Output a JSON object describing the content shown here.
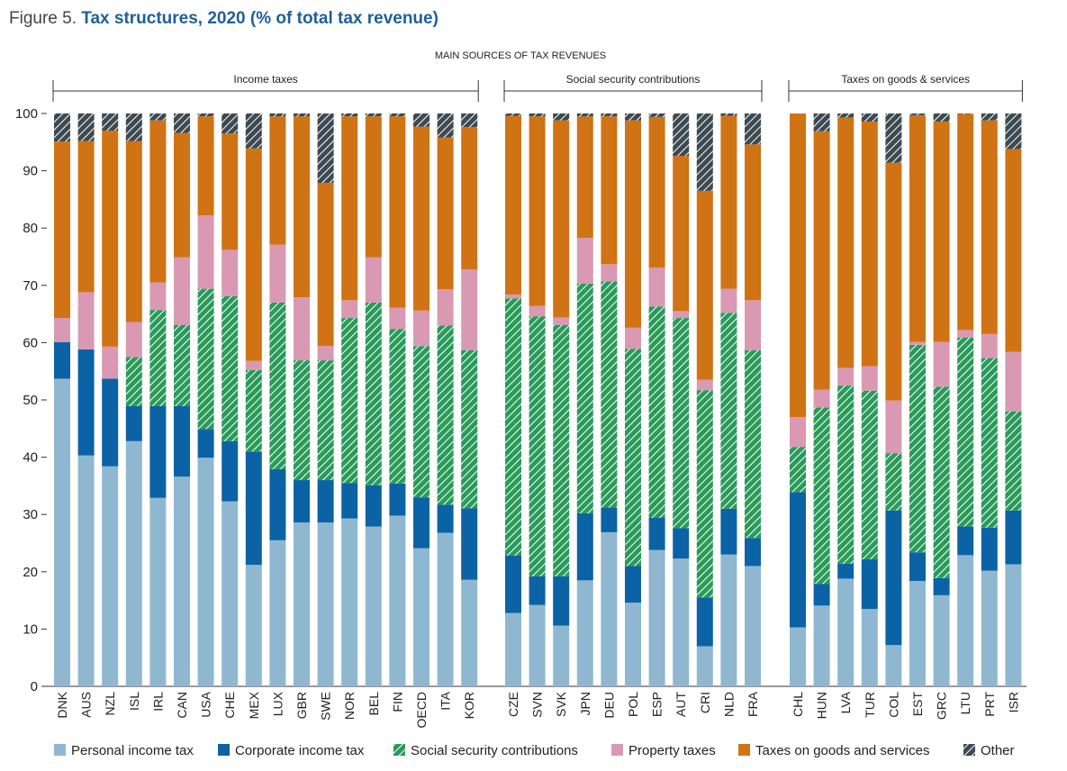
{
  "figure": {
    "label": "Figure 5.",
    "title": "Tax structures, 2020 (% of total tax revenue)",
    "subtitle": "MAIN SOURCES OF TAX REVENUES"
  },
  "chart_data": {
    "type": "bar",
    "stacked": true,
    "ylim": [
      0,
      100
    ],
    "yticks": [
      0,
      10,
      20,
      30,
      40,
      50,
      60,
      70,
      80,
      90,
      100
    ],
    "xlabel": "",
    "ylabel": "",
    "legend_position": "bottom",
    "components": [
      {
        "key": "pit",
        "name": "Personal income tax",
        "color": "#8fb8d0",
        "pattern": "solid"
      },
      {
        "key": "cit",
        "name": "Corporate income tax",
        "color": "#0b63a5",
        "pattern": "solid"
      },
      {
        "key": "ssc",
        "name": "Social security contributions",
        "color": "#2a9a5a",
        "pattern": "hatch"
      },
      {
        "key": "prop",
        "name": "Property taxes",
        "color": "#d999b3",
        "pattern": "solid"
      },
      {
        "key": "goods",
        "name": "Taxes on goods and services",
        "color": "#d07315",
        "pattern": "solid"
      },
      {
        "key": "other",
        "name": "Other",
        "color": "#3d4a52",
        "pattern": "hatch"
      }
    ],
    "groups": [
      {
        "label": "Income taxes",
        "countries": [
          "DNK",
          "AUS",
          "NZL",
          "ISL",
          "IRL",
          "CAN",
          "USA",
          "CHE",
          "MEX",
          "LUX",
          "GBR",
          "SWE",
          "NOR",
          "BEL",
          "FIN",
          "OECD",
          "ITA",
          "KOR"
        ],
        "series": {
          "pit": [
            53.7,
            40.3,
            38.4,
            42.8,
            32.9,
            36.6,
            39.9,
            32.3,
            21.2,
            25.5,
            28.6,
            28.6,
            29.3,
            27.9,
            29.8,
            24.1,
            26.8,
            18.6
          ],
          "cit": [
            6.4,
            18.5,
            15.3,
            6.1,
            16.0,
            12.3,
            5.0,
            10.5,
            19.8,
            12.4,
            7.4,
            7.4,
            6.2,
            7.2,
            5.6,
            8.9,
            4.9,
            12.5
          ],
          "ssc": [
            0.0,
            0.0,
            0.0,
            8.6,
            16.8,
            14.2,
            24.5,
            25.3,
            14.2,
            29.1,
            20.9,
            20.9,
            28.8,
            31.9,
            27.0,
            26.4,
            31.3,
            27.6
          ],
          "prop": [
            4.2,
            10.0,
            5.6,
            6.1,
            4.8,
            11.8,
            12.8,
            8.1,
            1.6,
            10.1,
            11.0,
            2.5,
            3.1,
            7.9,
            3.7,
            6.2,
            6.3,
            14.1
          ],
          "goods": [
            30.8,
            26.4,
            37.7,
            31.6,
            28.3,
            21.7,
            17.3,
            20.3,
            37.1,
            22.4,
            31.6,
            28.5,
            32.1,
            24.6,
            33.4,
            32.1,
            26.5,
            24.8
          ],
          "other": [
            4.9,
            4.8,
            3.0,
            4.8,
            1.2,
            3.4,
            0.5,
            3.5,
            6.1,
            0.5,
            0.5,
            12.1,
            0.5,
            0.5,
            0.5,
            2.3,
            4.2,
            2.4
          ]
        }
      },
      {
        "label": "Social security contributions",
        "countries": [
          "CZE",
          "SVN",
          "SVK",
          "JPN",
          "DEU",
          "POL",
          "ESP",
          "AUT",
          "CRI",
          "NLD",
          "FRA"
        ],
        "series": {
          "pit": [
            12.8,
            14.2,
            10.6,
            18.5,
            26.9,
            14.6,
            23.8,
            22.3,
            7.0,
            23.0,
            21.0
          ],
          "cit": [
            10.0,
            5.0,
            8.6,
            11.7,
            4.3,
            6.4,
            5.6,
            5.3,
            8.5,
            8.0,
            4.9
          ],
          "ssc": [
            44.9,
            45.4,
            43.9,
            40.1,
            39.5,
            37.9,
            36.9,
            36.7,
            36.2,
            34.2,
            32.8
          ],
          "prop": [
            0.7,
            1.8,
            1.3,
            8.0,
            3.0,
            3.7,
            6.8,
            1.2,
            1.8,
            4.2,
            8.7
          ],
          "goods": [
            31.2,
            33.1,
            34.4,
            21.2,
            25.8,
            36.2,
            26.3,
            27.1,
            33.0,
            30.2,
            27.2
          ],
          "other": [
            0.4,
            0.5,
            1.2,
            0.5,
            0.5,
            1.2,
            0.6,
            7.4,
            13.5,
            0.4,
            5.4
          ]
        }
      },
      {
        "label": "Taxes on goods & services",
        "countries": [
          "CHL",
          "HUN",
          "LVA",
          "TUR",
          "COL",
          "EST",
          "GRC",
          "LTU",
          "PRT",
          "ISR"
        ],
        "series": {
          "pit": [
            10.3,
            14.1,
            18.8,
            13.5,
            7.2,
            18.4,
            15.9,
            22.9,
            20.2,
            21.3
          ],
          "cit": [
            23.6,
            3.8,
            2.6,
            8.7,
            23.5,
            5.0,
            3.0,
            5.0,
            7.5,
            9.4
          ],
          "ssc": [
            7.9,
            30.8,
            31.1,
            29.4,
            10.0,
            36.2,
            33.4,
            33.0,
            29.6,
            17.3
          ],
          "prop": [
            5.2,
            3.1,
            3.1,
            4.3,
            9.2,
            0.5,
            7.8,
            1.3,
            4.2,
            10.4
          ],
          "goods": [
            53.0,
            45.1,
            43.7,
            42.7,
            41.5,
            39.6,
            38.5,
            37.7,
            37.3,
            35.4
          ],
          "other": [
            0.0,
            3.1,
            0.7,
            1.4,
            8.6,
            0.3,
            1.4,
            0.1,
            1.2,
            6.2
          ]
        }
      }
    ]
  }
}
